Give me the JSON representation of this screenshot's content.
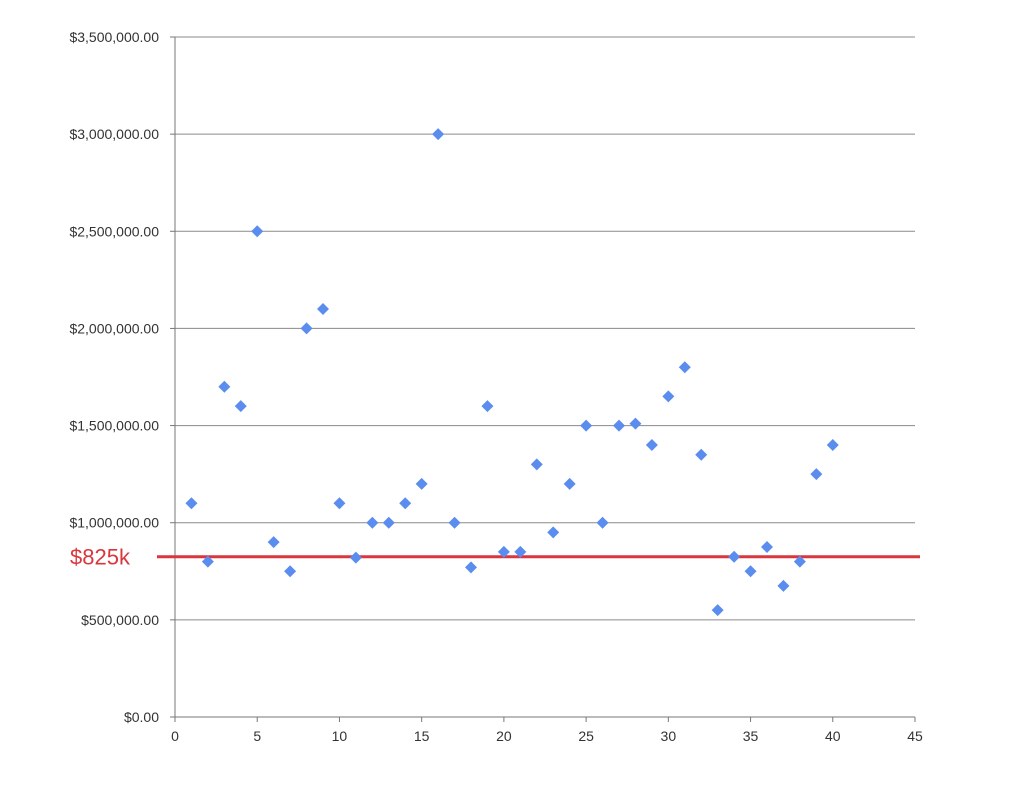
{
  "chart_data": {
    "type": "scatter",
    "title": "",
    "xlabel": "",
    "ylabel": "",
    "xlim": [
      0,
      45
    ],
    "ylim": [
      0,
      3500000
    ],
    "x_ticks": [
      "0",
      "5",
      "10",
      "15",
      "20",
      "25",
      "30",
      "35",
      "40",
      "45"
    ],
    "y_ticks": [
      "$0.00",
      "$500,000.00",
      "$1,000,000.00",
      "$1,500,000.00",
      "$2,000,000.00",
      "$2,500,000.00",
      "$3,000,000.00",
      "$3,500,000.00"
    ],
    "grid": "horizontal",
    "marker": "diamond",
    "series": [
      {
        "color": "#5b8def",
        "points": [
          {
            "x": 1,
            "y": 1100000
          },
          {
            "x": 2,
            "y": 800000
          },
          {
            "x": 3,
            "y": 1700000
          },
          {
            "x": 4,
            "y": 1600000
          },
          {
            "x": 5,
            "y": 2500000
          },
          {
            "x": 6,
            "y": 900000
          },
          {
            "x": 7,
            "y": 750000
          },
          {
            "x": 8,
            "y": 2000000
          },
          {
            "x": 9,
            "y": 2100000
          },
          {
            "x": 10,
            "y": 1100000
          },
          {
            "x": 11,
            "y": 820000
          },
          {
            "x": 12,
            "y": 1000000
          },
          {
            "x": 13,
            "y": 1000000
          },
          {
            "x": 14,
            "y": 1100000
          },
          {
            "x": 15,
            "y": 1200000
          },
          {
            "x": 16,
            "y": 3000000
          },
          {
            "x": 17,
            "y": 1000000
          },
          {
            "x": 18,
            "y": 770000
          },
          {
            "x": 19,
            "y": 1600000
          },
          {
            "x": 20,
            "y": 850000
          },
          {
            "x": 21,
            "y": 850000
          },
          {
            "x": 22,
            "y": 1300000
          },
          {
            "x": 23,
            "y": 950000
          },
          {
            "x": 24,
            "y": 1200000
          },
          {
            "x": 25,
            "y": 1500000
          },
          {
            "x": 26,
            "y": 1000000
          },
          {
            "x": 27,
            "y": 1500000
          },
          {
            "x": 28,
            "y": 1510000
          },
          {
            "x": 29,
            "y": 1400000
          },
          {
            "x": 30,
            "y": 1650000
          },
          {
            "x": 31,
            "y": 1800000
          },
          {
            "x": 32,
            "y": 1350000
          },
          {
            "x": 33,
            "y": 550000
          },
          {
            "x": 34,
            "y": 825000
          },
          {
            "x": 35,
            "y": 750000
          },
          {
            "x": 36,
            "y": 875000
          },
          {
            "x": 37,
            "y": 675000
          },
          {
            "x": 38,
            "y": 800000
          },
          {
            "x": 39,
            "y": 1250000
          },
          {
            "x": 40,
            "y": 1400000
          }
        ]
      }
    ],
    "reference_line": {
      "y": 825000,
      "label": "$825k",
      "color": "#d9363e"
    }
  }
}
